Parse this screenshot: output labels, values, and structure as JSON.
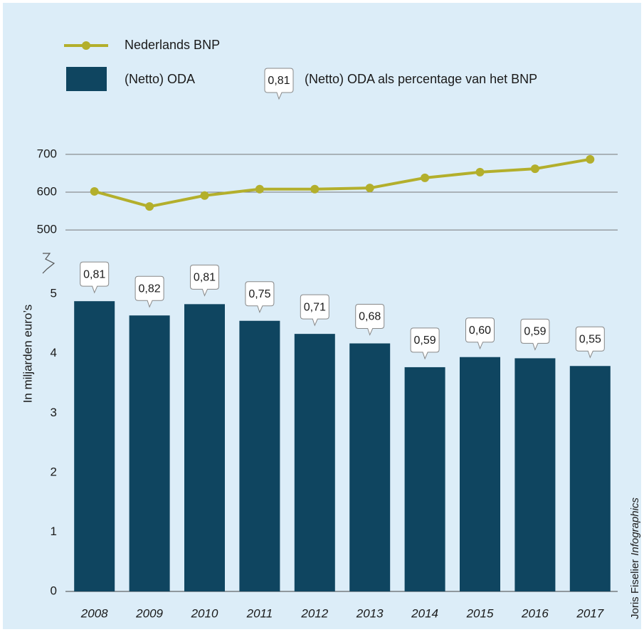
{
  "chart_data": {
    "type": "bar",
    "categories": [
      "2008",
      "2009",
      "2010",
      "2011",
      "2012",
      "2013",
      "2014",
      "2015",
      "2016",
      "2017"
    ],
    "series": [
      {
        "name": "(Netto) ODA",
        "type": "bar",
        "color": "#0f4560",
        "values": [
          4.88,
          4.64,
          4.83,
          4.55,
          4.33,
          4.17,
          3.77,
          3.94,
          3.92,
          3.79
        ]
      },
      {
        "name": "Nederlands BNP",
        "type": "line",
        "axis": "y2",
        "color": "#b3af2c",
        "values": [
          602,
          562,
          591,
          608,
          608,
          611,
          638,
          653,
          662,
          687
        ]
      },
      {
        "name": "(Netto) ODA als percentage van het BNP",
        "type": "label",
        "values": [
          0.81,
          0.82,
          0.81,
          0.75,
          0.71,
          0.68,
          0.59,
          0.6,
          0.59,
          0.55
        ],
        "value_labels": [
          "0,81",
          "0,82",
          "0,81",
          "0,75",
          "0,71",
          "0,68",
          "0,59",
          "0,60",
          "0,59",
          "0,55"
        ]
      }
    ],
    "y_label": "In miljarden euro’s",
    "ylim": [
      0,
      5.6
    ],
    "yticks": [
      0,
      1,
      2,
      3,
      4,
      5
    ],
    "y2lim": [
      470,
      730
    ],
    "y2ticks": [
      500,
      600,
      700
    ],
    "y2grid": true,
    "credit_name": "Joris Fiselier",
    "credit_agency": "Infographics"
  }
}
